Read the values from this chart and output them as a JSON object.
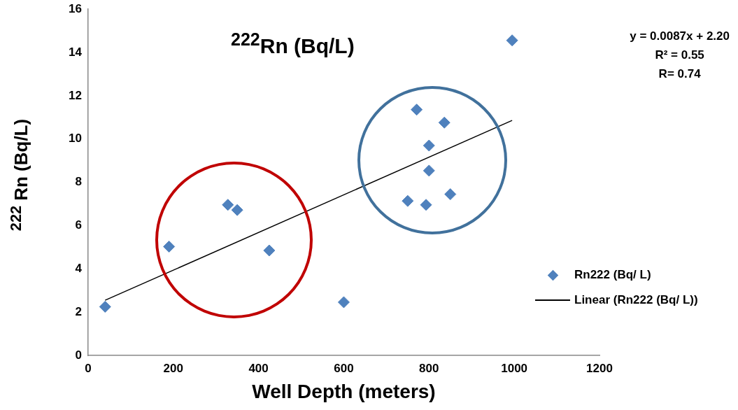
{
  "chart_data": {
    "type": "scatter",
    "title": "$^{222}$Rn (Bq/L)",
    "xlabel": "Well Depth (meters)",
    "ylabel": "$^{222}$ Rn (Bq/L)",
    "series": [
      {
        "name": "Rn222 (Bq/ L)",
        "marker": "diamond",
        "color": "#4f81bd",
        "x": [
          40,
          190,
          328,
          350,
          425,
          600,
          750,
          771,
          793,
          800,
          800,
          836,
          850,
          995
        ],
        "values": [
          2.25,
          5.03,
          6.96,
          6.72,
          4.85,
          2.46,
          7.14,
          11.36,
          6.96,
          9.7,
          8.54,
          10.76,
          7.45,
          14.56
        ]
      },
      {
        "name": "Linear (Rn222 (Bq/ L))",
        "type": "line",
        "marker": "none",
        "color": "#000000",
        "x": [
          40,
          995
        ],
        "values": [
          2.55,
          10.86
        ]
      }
    ],
    "xlim": [
      0,
      1200
    ],
    "xticks": [
      0,
      200,
      400,
      600,
      800,
      1000,
      1200
    ],
    "ylim": [
      0,
      16
    ],
    "yticks": [
      0,
      2,
      4,
      6,
      8,
      10,
      12,
      14,
      16
    ],
    "grid": false,
    "legend": "right",
    "annotations": [
      "y = 0.0087x + 2.20",
      "R² = 0.55",
      "R= 0.74"
    ]
  }
}
